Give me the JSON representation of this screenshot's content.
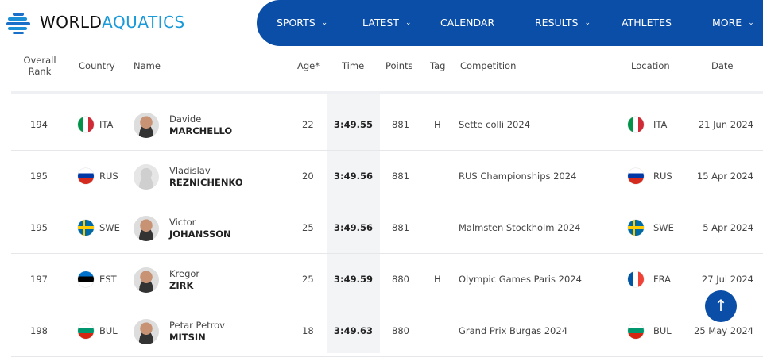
{
  "header": {
    "logo_word1": "WORLD",
    "logo_word2": "AQUATICS",
    "nav": [
      {
        "label": "SPORTS",
        "chevron": true
      },
      {
        "label": "LATEST",
        "chevron": true
      },
      {
        "label": "CALENDAR",
        "chevron": false
      },
      {
        "label": "RESULTS",
        "chevron": true
      },
      {
        "label": "ATHLETES",
        "chevron": false
      },
      {
        "label": "MORE",
        "chevron": true
      }
    ]
  },
  "colors": {
    "brand_blue": "#0b4ea8",
    "logo_accent": "#1a9ad9"
  },
  "table": {
    "columns": {
      "rank_line1": "Overall",
      "rank_line2": "Rank",
      "country": "Country",
      "name": "Name",
      "age": "Age*",
      "time": "Time",
      "points": "Points",
      "tag": "Tag",
      "competition": "Competition",
      "location": "Location",
      "date": "Date"
    },
    "rows": [
      {
        "rank": "194",
        "country": "ITA",
        "first": "Davide",
        "last": "MARCHELLO",
        "age": "22",
        "time": "3:49.55",
        "points": "881",
        "tag": "H",
        "competition": "Sette colli 2024",
        "location": "ITA",
        "date": "21 Jun 2024",
        "photo": true
      },
      {
        "rank": "195",
        "country": "RUS",
        "first": "Vladislav",
        "last": "REZNICHENKO",
        "age": "20",
        "time": "3:49.56",
        "points": "881",
        "tag": "",
        "competition": "RUS Championships 2024",
        "location": "RUS",
        "date": "15 Apr 2024",
        "photo": false
      },
      {
        "rank": "195",
        "country": "SWE",
        "first": "Victor",
        "last": "JOHANSSON",
        "age": "25",
        "time": "3:49.56",
        "points": "881",
        "tag": "",
        "competition": "Malmsten Stockholm 2024",
        "location": "SWE",
        "date": "5 Apr 2024",
        "photo": true
      },
      {
        "rank": "197",
        "country": "EST",
        "first": "Kregor",
        "last": "ZIRK",
        "age": "25",
        "time": "3:49.59",
        "points": "880",
        "tag": "H",
        "competition": "Olympic Games Paris 2024",
        "location": "FRA",
        "date": "27 Jul 2024",
        "photo": true
      },
      {
        "rank": "198",
        "country": "BUL",
        "first": "Petar Petrov",
        "last": "MITSIN",
        "age": "18",
        "time": "3:49.63",
        "points": "880",
        "tag": "",
        "competition": "Grand Prix Burgas 2024",
        "location": "BUL",
        "date": "25 May 2024",
        "photo": true
      }
    ]
  },
  "scroll_top": {
    "icon": "arrow-up-icon",
    "glyph": "↑"
  }
}
